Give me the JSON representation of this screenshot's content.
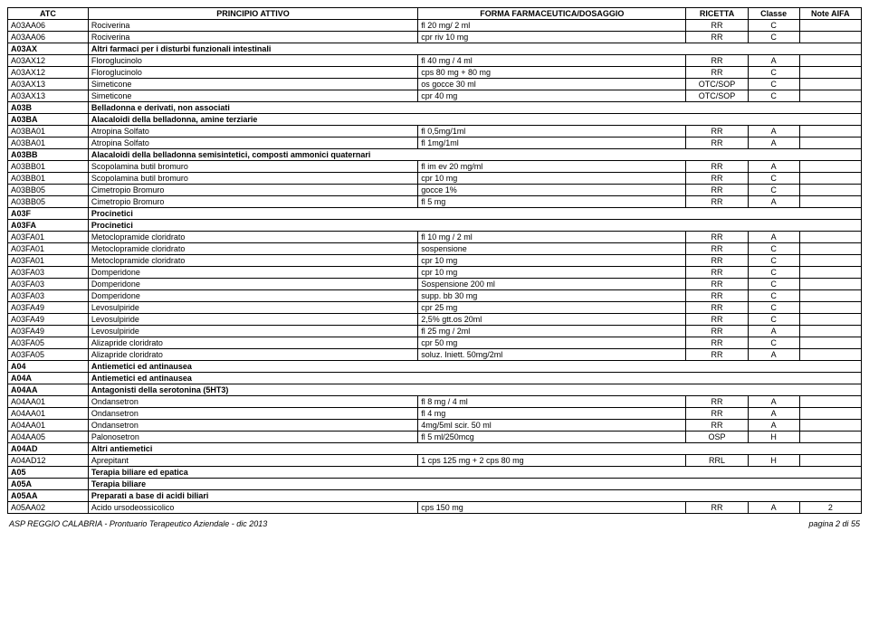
{
  "headers": {
    "atc": "ATC",
    "principio": "PRINCIPIO ATTIVO",
    "forma": "FORMA FARMACEUTICA/DOSAGGIO",
    "ricetta": "RICETTA",
    "classe": "Classe",
    "note": "Note AIFA"
  },
  "rows": [
    {
      "t": "d",
      "atc": "A03AA06",
      "pa": "Rociverina",
      "forma": "fl 20 mg/ 2 ml",
      "ric": "RR",
      "cl": "C",
      "n": ""
    },
    {
      "t": "d",
      "atc": "A03AA06",
      "pa": "Rociverina",
      "forma": "cpr riv 10 mg",
      "ric": "RR",
      "cl": "C",
      "n": ""
    },
    {
      "t": "s",
      "atc": "A03AX",
      "pa": "Altri farmaci per i disturbi funzionali intestinali"
    },
    {
      "t": "d",
      "atc": "A03AX12",
      "pa": "Floroglucinolo",
      "forma": "fl 40 mg / 4 ml",
      "ric": "RR",
      "cl": "A",
      "n": ""
    },
    {
      "t": "d",
      "atc": "A03AX12",
      "pa": "Floroglucinolo",
      "forma": "cps 80 mg + 80 mg",
      "ric": "RR",
      "cl": "C",
      "n": ""
    },
    {
      "t": "d",
      "atc": "A03AX13",
      "pa": "Simeticone",
      "forma": "os gocce 30 ml",
      "ric": "OTC/SOP",
      "cl": "C",
      "n": ""
    },
    {
      "t": "d",
      "atc": "A03AX13",
      "pa": "Simeticone",
      "forma": "cpr 40 mg",
      "ric": "OTC/SOP",
      "cl": "C",
      "n": ""
    },
    {
      "t": "s",
      "atc": "A03B",
      "pa": "Belladonna e derivati, non associati"
    },
    {
      "t": "s",
      "atc": "A03BA",
      "pa": "Alacaloidi della belladonna, amine terziarie"
    },
    {
      "t": "d",
      "atc": "A03BA01",
      "pa": "Atropina Solfato",
      "forma": "fl 0,5mg/1ml",
      "ric": "RR",
      "cl": "A",
      "n": ""
    },
    {
      "t": "d",
      "atc": "A03BA01",
      "pa": "Atropina Solfato",
      "forma": "fl 1mg/1ml",
      "ric": "RR",
      "cl": "A",
      "n": ""
    },
    {
      "t": "s",
      "atc": "A03BB",
      "pa": "Alacaloidi della belladonna semisintetici, composti ammonici quaternari"
    },
    {
      "t": "d",
      "atc": "A03BB01",
      "pa": "Scopolamina butil bromuro",
      "forma": "fl im ev 20 mg/ml",
      "ric": "RR",
      "cl": "A",
      "n": ""
    },
    {
      "t": "d",
      "atc": "A03BB01",
      "pa": "Scopolamina butil bromuro",
      "forma": "cpr 10 mg",
      "ric": "RR",
      "cl": "C",
      "n": ""
    },
    {
      "t": "d",
      "atc": "A03BB05",
      "pa": "Cimetropio Bromuro",
      "forma": "gocce 1%",
      "ric": "RR",
      "cl": "C",
      "n": ""
    },
    {
      "t": "d",
      "atc": "A03BB05",
      "pa": "Cimetropio Bromuro",
      "forma": "fl 5 mg",
      "ric": "RR",
      "cl": "A",
      "n": ""
    },
    {
      "t": "s",
      "atc": "A03F",
      "pa": "Procinetici"
    },
    {
      "t": "s",
      "atc": "A03FA",
      "pa": "Procinetici"
    },
    {
      "t": "d",
      "atc": "A03FA01",
      "pa": "Metoclopramide cloridrato",
      "forma": "fl 10 mg / 2 ml",
      "ric": "RR",
      "cl": "A",
      "n": ""
    },
    {
      "t": "d",
      "atc": "A03FA01",
      "pa": "Metoclopramide cloridrato",
      "forma": "sospensione",
      "ric": "RR",
      "cl": "C",
      "n": ""
    },
    {
      "t": "d",
      "atc": "A03FA01",
      "pa": "Metoclopramide cloridrato",
      "forma": "cpr 10 mg",
      "ric": "RR",
      "cl": "C",
      "n": ""
    },
    {
      "t": "d",
      "atc": "A03FA03",
      "pa": "Domperidone",
      "forma": "cpr 10 mg",
      "ric": "RR",
      "cl": "C",
      "n": ""
    },
    {
      "t": "d",
      "atc": "A03FA03",
      "pa": "Domperidone",
      "forma": "Sospensione 200 ml",
      "ric": "RR",
      "cl": "C",
      "n": ""
    },
    {
      "t": "d",
      "atc": "A03FA03",
      "pa": "Domperidone",
      "forma": "supp. bb 30 mg",
      "ric": "RR",
      "cl": "C",
      "n": ""
    },
    {
      "t": "d",
      "atc": "A03FA49",
      "pa": "Levosulpiride",
      "forma": "cpr 25 mg",
      "ric": "RR",
      "cl": "C",
      "n": ""
    },
    {
      "t": "d",
      "atc": "A03FA49",
      "pa": "Levosulpiride",
      "forma": "2,5% gtt.os 20ml",
      "ric": "RR",
      "cl": "C",
      "n": ""
    },
    {
      "t": "d",
      "atc": "A03FA49",
      "pa": "Levosulpiride",
      "forma": "fl 25 mg / 2ml",
      "ric": "RR",
      "cl": "A",
      "n": ""
    },
    {
      "t": "d",
      "atc": "A03FA05",
      "pa": "Alizapride cloridrato",
      "forma": "cpr 50 mg",
      "ric": "RR",
      "cl": "C",
      "n": ""
    },
    {
      "t": "d",
      "atc": "A03FA05",
      "pa": "Alizapride cloridrato",
      "forma": "soluz. Iniett. 50mg/2ml",
      "ric": "RR",
      "cl": "A",
      "n": ""
    },
    {
      "t": "s",
      "atc": "A04",
      "pa": "Antiemetici ed antinausea"
    },
    {
      "t": "s",
      "atc": "A04A",
      "pa": "Antiemetici ed antinausea"
    },
    {
      "t": "s",
      "atc": "A04AA",
      "pa": "Antagonisti della serotonina (5HT3)"
    },
    {
      "t": "d",
      "atc": "A04AA01",
      "pa": "Ondansetron",
      "forma": "fl 8 mg / 4 ml",
      "ric": "RR",
      "cl": "A",
      "n": ""
    },
    {
      "t": "d",
      "atc": "A04AA01",
      "pa": "Ondansetron",
      "forma": "fl 4 mg",
      "ric": "RR",
      "cl": "A",
      "n": ""
    },
    {
      "t": "d",
      "atc": "A04AA01",
      "pa": "Ondansetron",
      "forma": "4mg/5ml scir. 50 ml",
      "ric": "RR",
      "cl": "A",
      "n": ""
    },
    {
      "t": "d",
      "atc": "A04AA05",
      "pa": "Palonosetron",
      "forma": "fl 5 ml/250mcg",
      "ric": "OSP",
      "cl": "H",
      "n": ""
    },
    {
      "t": "s",
      "atc": "A04AD",
      "pa": "Altri antiemetici"
    },
    {
      "t": "d",
      "atc": "A04AD12",
      "pa": "Aprepitant",
      "forma": "1 cps 125 mg + 2 cps 80 mg",
      "ric": "RRL",
      "cl": "H",
      "n": ""
    },
    {
      "t": "s",
      "atc": "A05",
      "pa": "Terapia biliare ed epatica"
    },
    {
      "t": "s",
      "atc": "A05A",
      "pa": "Terapia biliare"
    },
    {
      "t": "s",
      "atc": "A05AA",
      "pa": "Preparati a base di acidi biliari"
    },
    {
      "t": "d",
      "atc": "A05AA02",
      "pa": "Acido ursodeossicolico",
      "forma": "cps 150 mg",
      "ric": "RR",
      "cl": "A",
      "n": "2"
    }
  ],
  "footer": {
    "left": "ASP REGGIO CALABRIA - Prontuario Terapeutico Aziendale - dic 2013",
    "right": "pagina 2 di 55"
  }
}
